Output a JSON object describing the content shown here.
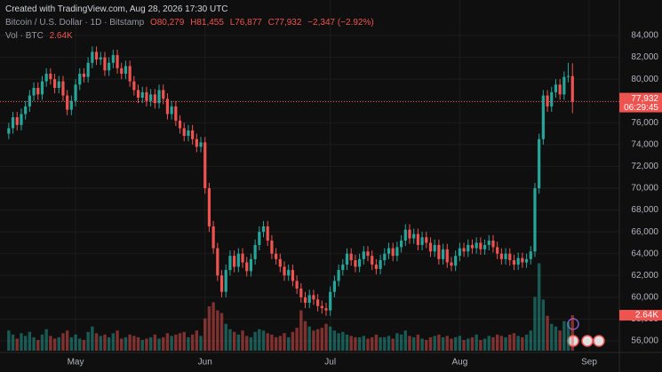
{
  "chart_data": {
    "type": "candlestick",
    "title": "Created with TradingView.com, Aug 28, 2026 17:30 UTC",
    "subtitle": "Bitcoin / U.S. Dollar · 1D · Bitstamp",
    "ohlc_labels": [
      "O80,279",
      "H81,455",
      "L76,877",
      "C77,932"
    ],
    "change_label": "−2,347 (−2.92%)",
    "volume_title": "Vol · BTC",
    "volume_label": "2.64K",
    "last_price_label": "77,932",
    "countdown": "06:29:45",
    "up_color": "#26a69a",
    "down_color": "#ef5350",
    "grid": true,
    "xlim": [
      -2.1,
      145.8
    ],
    "ylim": [
      56000,
      84000
    ],
    "volume_lim": [
      0,
      7000
    ],
    "xticks": [
      {
        "value": 16,
        "label": "May"
      },
      {
        "value": 47,
        "label": "Jun"
      },
      {
        "value": 77,
        "label": "Jul"
      },
      {
        "value": 108,
        "label": "Aug"
      },
      {
        "value": 139,
        "label": "Sep"
      }
    ],
    "yticks": [
      {
        "value": 56000,
        "label": "56,000"
      },
      {
        "value": 58000,
        "label": "58,000"
      },
      {
        "value": 60000,
        "label": "60,000"
      },
      {
        "value": 62000,
        "label": "62,000"
      },
      {
        "value": 64000,
        "label": "64,000"
      },
      {
        "value": 66000,
        "label": "66,000"
      },
      {
        "value": 68000,
        "label": "68,000"
      },
      {
        "value": 70000,
        "label": "70,000"
      },
      {
        "value": 72000,
        "label": "72,000"
      },
      {
        "value": 74000,
        "label": "74,000"
      },
      {
        "value": 76000,
        "label": "76,000"
      },
      {
        "value": 78000,
        "label": "78,000"
      },
      {
        "value": 80000,
        "label": "80,000"
      },
      {
        "value": 82000,
        "label": "82,000"
      },
      {
        "value": 84000,
        "label": "84,000"
      }
    ],
    "open": [
      75000,
      75500,
      76500,
      75800,
      76800,
      77500,
      78500,
      79200,
      78600,
      79800,
      80500,
      80000,
      79200,
      79800,
      78500,
      77200,
      78000,
      79500,
      80500,
      80200,
      81500,
      82500,
      81800,
      82000,
      80800,
      81500,
      82200,
      81000,
      80500,
      81200,
      79800,
      79000,
      78300,
      78800,
      78000,
      78600,
      77800,
      79000,
      78200,
      76800,
      77500,
      76200,
      75500,
      74800,
      75300,
      74500,
      73800,
      74200,
      70000,
      66500,
      64500,
      62000,
      60500,
      62500,
      63800,
      62800,
      64000,
      63200,
      62400,
      63500,
      64800,
      66000,
      66500,
      65200,
      64000,
      63500,
      62800,
      62000,
      62500,
      61500,
      60800,
      60000,
      59500,
      60200,
      59800,
      59200,
      59000,
      58800,
      60500,
      61500,
      62500,
      63000,
      64000,
      63400,
      62800,
      63500,
      64200,
      63800,
      63000,
      62600,
      63400,
      64000,
      64500,
      63800,
      64600,
      65200,
      66200,
      65400,
      65800,
      64800,
      65500,
      65000,
      64200,
      64800,
      63500,
      64400,
      63200,
      62900,
      63800,
      64500,
      64200,
      64800,
      64500,
      65000,
      64400,
      64800,
      65200,
      64600,
      64000,
      63500,
      64000,
      63400,
      63000,
      63600,
      63200,
      63500,
      64200,
      70000,
      74500,
      78500,
      77500,
      78800,
      79500,
      78600,
      80200,
      80279
    ],
    "high": [
      76000,
      77000,
      77000,
      77300,
      78000,
      79000,
      79700,
      79700,
      80300,
      81000,
      81000,
      80500,
      80300,
      80300,
      79000,
      78500,
      80000,
      81000,
      81000,
      82000,
      83000,
      83000,
      82500,
      82500,
      82000,
      82700,
      82700,
      81500,
      81700,
      81700,
      80300,
      79500,
      79300,
      79300,
      79100,
      79100,
      79500,
      79500,
      78700,
      78000,
      78000,
      76700,
      76000,
      75800,
      75800,
      75000,
      74700,
      74700,
      70500,
      67000,
      65000,
      62500,
      63000,
      64300,
      64300,
      64500,
      64500,
      63700,
      64000,
      65300,
      66500,
      67000,
      67000,
      65700,
      64500,
      64000,
      63300,
      63000,
      63000,
      62000,
      61300,
      60500,
      60700,
      60700,
      60300,
      59700,
      59500,
      61000,
      62000,
      63000,
      63500,
      64500,
      64500,
      63900,
      64000,
      64700,
      64700,
      64300,
      63500,
      63900,
      64500,
      65000,
      65000,
      65100,
      65700,
      66700,
      66700,
      66300,
      66300,
      66000,
      66000,
      65500,
      65300,
      65300,
      64900,
      64900,
      63700,
      64300,
      65000,
      65000,
      65300,
      65300,
      65500,
      65500,
      65300,
      65700,
      65700,
      65100,
      64500,
      64500,
      64500,
      63900,
      64100,
      64100,
      64000,
      64700,
      70500,
      75000,
      79000,
      79000,
      79300,
      80000,
      80000,
      80700,
      81500,
      81455
    ],
    "low": [
      74500,
      75000,
      75300,
      75300,
      76300,
      77000,
      78000,
      78100,
      78100,
      79300,
      79500,
      78700,
      78700,
      78000,
      76700,
      76700,
      77500,
      79000,
      79700,
      79700,
      81000,
      81300,
      81300,
      80300,
      80300,
      81000,
      80500,
      80000,
      80000,
      79300,
      78500,
      77800,
      77800,
      77500,
      77500,
      77300,
      77300,
      77700,
      76300,
      76300,
      75700,
      75000,
      74300,
      74300,
      74000,
      73300,
      73300,
      69500,
      66000,
      64000,
      61500,
      60000,
      60000,
      62000,
      62300,
      62300,
      62700,
      61900,
      61900,
      63000,
      64300,
      65500,
      64700,
      63500,
      63000,
      62300,
      61500,
      61500,
      61000,
      60300,
      59500,
      59000,
      59000,
      59300,
      58700,
      58500,
      58300,
      58300,
      60000,
      61000,
      62000,
      62500,
      62900,
      62300,
      62300,
      63000,
      63300,
      62500,
      62100,
      62100,
      62900,
      63500,
      63300,
      63300,
      64100,
      64700,
      64900,
      64900,
      64300,
      64300,
      64500,
      63700,
      63700,
      63000,
      63000,
      62700,
      62400,
      62400,
      63300,
      63700,
      63700,
      64000,
      64000,
      63900,
      63900,
      64300,
      64100,
      63500,
      63000,
      63000,
      62900,
      62500,
      62500,
      62700,
      62700,
      63000,
      63700,
      69500,
      74000,
      77000,
      77000,
      78300,
      78100,
      78100,
      79700,
      76877
    ],
    "close": [
      75500,
      76500,
      75800,
      76800,
      77500,
      78500,
      79200,
      78600,
      79800,
      80500,
      80000,
      79200,
      79800,
      78500,
      77200,
      78000,
      79500,
      80500,
      80200,
      81500,
      82500,
      81800,
      82000,
      80800,
      81500,
      82200,
      81000,
      80500,
      81200,
      79800,
      79000,
      78300,
      78800,
      78000,
      78600,
      77800,
      79000,
      78200,
      76800,
      77500,
      76200,
      75500,
      74800,
      75300,
      74500,
      73800,
      74200,
      70000,
      66500,
      64500,
      62000,
      60500,
      62500,
      63800,
      62800,
      64000,
      63200,
      62400,
      63500,
      64800,
      66000,
      66500,
      65200,
      64000,
      63500,
      62800,
      62000,
      62500,
      61500,
      60800,
      60000,
      59500,
      60200,
      59800,
      59200,
      59000,
      58800,
      60500,
      61500,
      62500,
      63000,
      64000,
      63400,
      62800,
      63500,
      64200,
      63800,
      63000,
      62600,
      63400,
      64000,
      64500,
      63800,
      64600,
      65200,
      66200,
      65400,
      65800,
      64800,
      65500,
      65000,
      64200,
      64800,
      63500,
      64400,
      63200,
      62900,
      63800,
      64500,
      64200,
      64800,
      64500,
      65000,
      64400,
      64800,
      65200,
      64600,
      64000,
      63500,
      64000,
      63400,
      63000,
      63600,
      63200,
      63500,
      64200,
      70000,
      74500,
      78500,
      77500,
      78800,
      79500,
      78600,
      80200,
      80279,
      77932
    ],
    "volume": [
      1500,
      1200,
      900,
      1300,
      1100,
      1400,
      1000,
      800,
      1200,
      1600,
      1100,
      900,
      1000,
      1300,
      1500,
      1000,
      1200,
      900,
      800,
      1400,
      1800,
      1300,
      1100,
      1200,
      1000,
      1300,
      1500,
      900,
      1000,
      1200,
      1100,
      1000,
      800,
      900,
      1000,
      1200,
      900,
      1000,
      1300,
      1100,
      1200,
      1300,
      1400,
      1000,
      1200,
      1500,
      1100,
      2400,
      3300,
      3600,
      3000,
      2800,
      2000,
      1600,
      1400,
      1200,
      1500,
      1100,
      1000,
      1400,
      1600,
      1500,
      1300,
      1200,
      1000,
      1100,
      1300,
      1000,
      1400,
      1700,
      3000,
      2200,
      1800,
      1500,
      1600,
      1700,
      2000,
      1800,
      1500,
      1300,
      1400,
      1200,
      1100,
      1000,
      1000,
      1100,
      900,
      1000,
      1200,
      1000,
      1000,
      1100,
      900,
      1300,
      1200,
      1500,
      1100,
      1000,
      1200,
      900,
      800,
      1000,
      1100,
      1200,
      1000,
      1100,
      900,
      1000,
      1100,
      800,
      900,
      1000,
      1200,
      800,
      900,
      1100,
      1000,
      1200,
      1100,
      1000,
      1200,
      1300,
      1100,
      1000,
      1200,
      1500,
      4000,
      6500,
      3800,
      2600,
      2000,
      1800,
      1500,
      2200,
      2100,
      2640
    ]
  }
}
